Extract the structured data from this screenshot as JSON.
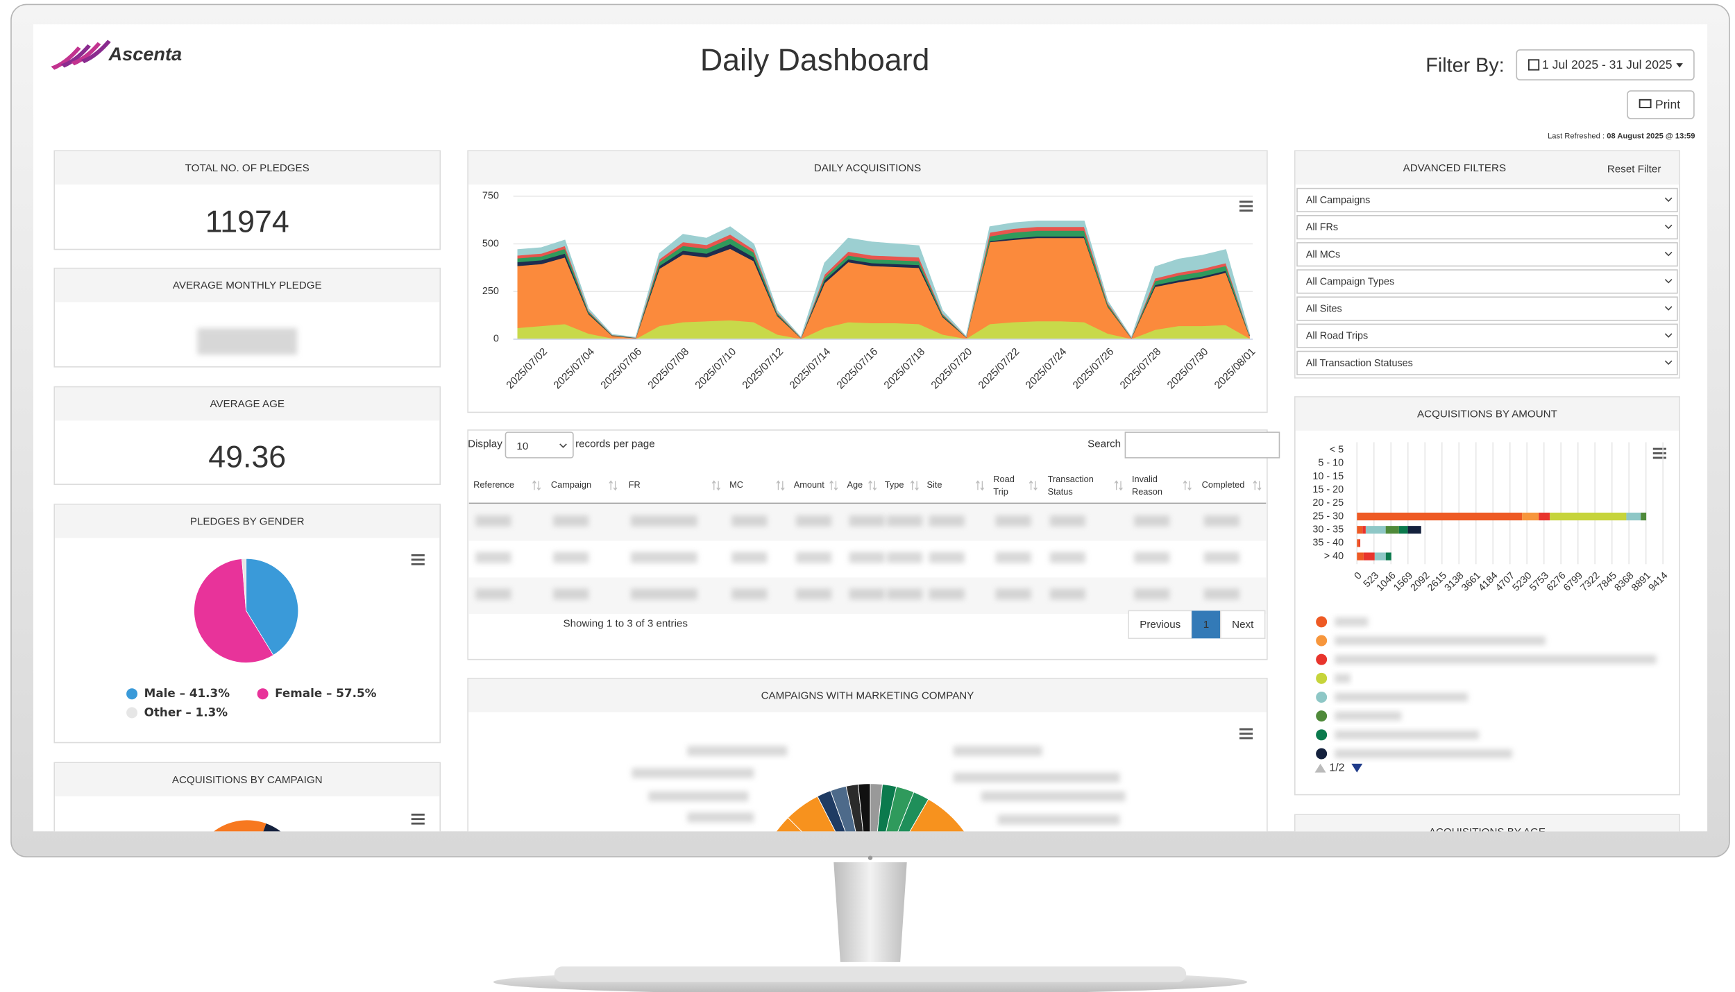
{
  "header": {
    "logo": "Ascenta",
    "title": "Daily Dashboard",
    "filter_label": "Filter By:",
    "date_range": "1 Jul 2025 - 31 Jul 2025",
    "print": "Print",
    "refreshed_label": "Last Refreshed :",
    "refreshed_at": "08 August 2025 @ 13:59"
  },
  "kpis": [
    {
      "title": "TOTAL NO. OF PLEDGES",
      "value": 11974
    },
    {
      "title": "AVERAGE MONTHLY PLEDGE"
    },
    {
      "title": "AVERAGE AGE",
      "value": 49.36
    }
  ],
  "chart_data": [
    {
      "type": "area",
      "stacked": true,
      "title": "DAILY ACQUISITIONS",
      "categories": [
        null,
        "2025/07/02",
        null,
        "2025/07/04",
        null,
        "2025/07/06",
        null,
        "2025/07/08",
        null,
        "2025/07/10",
        null,
        "2025/07/12",
        null,
        "2025/07/14",
        null,
        "2025/07/16",
        null,
        "2025/07/18",
        null,
        "2025/07/20",
        null,
        "2025/07/22",
        null,
        "2025/07/24",
        null,
        "2025/07/26",
        null,
        "2025/07/28",
        null,
        "2025/07/30",
        null,
        "2025/08/01"
      ],
      "series": [
        {
          "color": "#c8d94a",
          "values": [
            60,
            70,
            80,
            30,
            5,
            2,
            70,
            90,
            95,
            100,
            90,
            25,
            2,
            60,
            90,
            85,
            85,
            80,
            25,
            3,
            80,
            90,
            95,
            95,
            90,
            30,
            2,
            50,
            70,
            70,
            75,
            5
          ]
        },
        {
          "color": "#fb8a3c",
          "values": [
            325,
            325,
            350,
            102,
            13,
            4,
            300,
            355,
            335,
            375,
            320,
            97,
            4,
            235,
            315,
            300,
            295,
            295,
            92,
            7,
            430,
            432,
            437,
            437,
            442,
            140,
            4,
            225,
            230,
            250,
            275,
            13
          ]
        },
        {
          "color": "#1f2d4f",
          "values": [
            20,
            20,
            20,
            5,
            2,
            1,
            15,
            20,
            20,
            25,
            20,
            5,
            1,
            15,
            15,
            15,
            15,
            15,
            5,
            1,
            5,
            8,
            8,
            8,
            8,
            3,
            1,
            10,
            10,
            10,
            10,
            2
          ]
        },
        {
          "color": "#2f9a5c",
          "values": [
            20,
            20,
            25,
            8,
            2,
            1,
            20,
            25,
            25,
            30,
            25,
            8,
            1,
            15,
            20,
            20,
            20,
            20,
            8,
            1,
            25,
            30,
            30,
            30,
            30,
            10,
            1,
            20,
            25,
            25,
            25,
            3
          ]
        },
        {
          "color": "#e8554e",
          "values": [
            15,
            15,
            15,
            5,
            1,
            1,
            15,
            20,
            20,
            20,
            15,
            5,
            1,
            15,
            20,
            20,
            20,
            20,
            5,
            1,
            20,
            20,
            20,
            20,
            20,
            7,
            1,
            15,
            15,
            15,
            15,
            2
          ]
        },
        {
          "color": "#9ccfd1",
          "values": [
            30,
            30,
            30,
            10,
            2,
            1,
            30,
            40,
            35,
            40,
            30,
            10,
            1,
            60,
            70,
            70,
            65,
            60,
            15,
            2,
            30,
            30,
            30,
            30,
            30,
            10,
            1,
            60,
            70,
            70,
            70,
            5
          ]
        }
      ],
      "ylim": [
        0,
        750
      ],
      "yticks": [
        0,
        250,
        500,
        750
      ],
      "grid": true
    },
    {
      "type": "pie",
      "title": "PLEDGES BY GENDER",
      "categories": [
        "Male",
        "Female",
        "Other"
      ],
      "values": [
        41.3,
        57.5,
        1.3
      ],
      "value_labels": [
        "Male – 41.3%",
        "Female – 57.5%",
        "Other – 1.3%"
      ],
      "colors": [
        "#3a9ad9",
        "#e8339a",
        "#e6e6e6"
      ]
    },
    {
      "type": "hbar",
      "stacked": true,
      "title": "ACQUISITIONS BY AMOUNT",
      "categories": [
        "< 5",
        "5 - 10",
        "10 - 15",
        "15 - 20",
        "20 - 25",
        "25 - 30",
        "30 - 35",
        "35 - 40",
        "> 40"
      ],
      "series": [
        {
          "color": "#ee5a24",
          "values": [
            0,
            0,
            0,
            0,
            0,
            5082,
            170,
            68,
            205
          ]
        },
        {
          "color": "#f7963c",
          "values": [
            0,
            0,
            0,
            0,
            0,
            512,
            0,
            0,
            0
          ]
        },
        {
          "color": "#e8342c",
          "values": [
            0,
            0,
            0,
            0,
            0,
            341,
            100,
            34,
            341
          ]
        },
        {
          "color": "#c6d43b",
          "values": [
            0,
            0,
            0,
            0,
            0,
            2353,
            0,
            0,
            0
          ]
        },
        {
          "color": "#8ec7c6",
          "values": [
            0,
            0,
            0,
            0,
            0,
            443,
            614,
            0,
            341
          ]
        },
        {
          "color": "#4f8a3a",
          "values": [
            0,
            0,
            0,
            0,
            0,
            170,
            409,
            0,
            0
          ]
        },
        {
          "color": "#0b7a4d",
          "values": [
            0,
            0,
            0,
            0,
            0,
            0,
            273,
            0,
            170
          ]
        },
        {
          "color": "#14213d",
          "values": [
            0,
            0,
            0,
            0,
            0,
            0,
            409,
            0,
            0
          ]
        }
      ],
      "xlim": [
        0,
        9414
      ],
      "xticks": [
        0,
        523,
        1046,
        1569,
        2092,
        2615,
        3138,
        3661,
        4184,
        4707,
        5230,
        5753,
        6276,
        6799,
        7322,
        7845,
        8368,
        8891,
        9414
      ],
      "grid": true,
      "legend_page": "1/2"
    }
  ],
  "table": {
    "length_before": "Display",
    "page_length": 10,
    "length_after": "records per page",
    "search_label": "Search",
    "columns": [
      [
        "Reference"
      ],
      [
        "Campaign"
      ],
      [
        "FR"
      ],
      [
        "MC"
      ],
      [
        "Amount"
      ],
      [
        "Age"
      ],
      [
        "Type"
      ],
      [
        "Site"
      ],
      [
        "Road",
        "Trip"
      ],
      [
        "Transaction",
        "Status"
      ],
      [
        "Invalid",
        "Reason"
      ],
      [
        "Completed"
      ]
    ],
    "info": "Showing 1 to 3 of 3 entries",
    "pagination": {
      "previous": "Previous",
      "current": 1,
      "next": "Next"
    }
  },
  "filters": {
    "title": "ADVANCED FILTERS",
    "reset": "Reset Filter",
    "options": [
      "All Campaigns",
      "All FRs",
      "All MCs",
      "All Campaign Types",
      "All Sites",
      "All Road Trips",
      "All Transaction Statuses"
    ]
  },
  "panels": {
    "campaign": "ACQUISITIONS BY CAMPAIGN",
    "marketing": "CAMPAIGNS WITH MARKETING COMPANY",
    "age": "ACQUISITIONS BY AGE"
  }
}
